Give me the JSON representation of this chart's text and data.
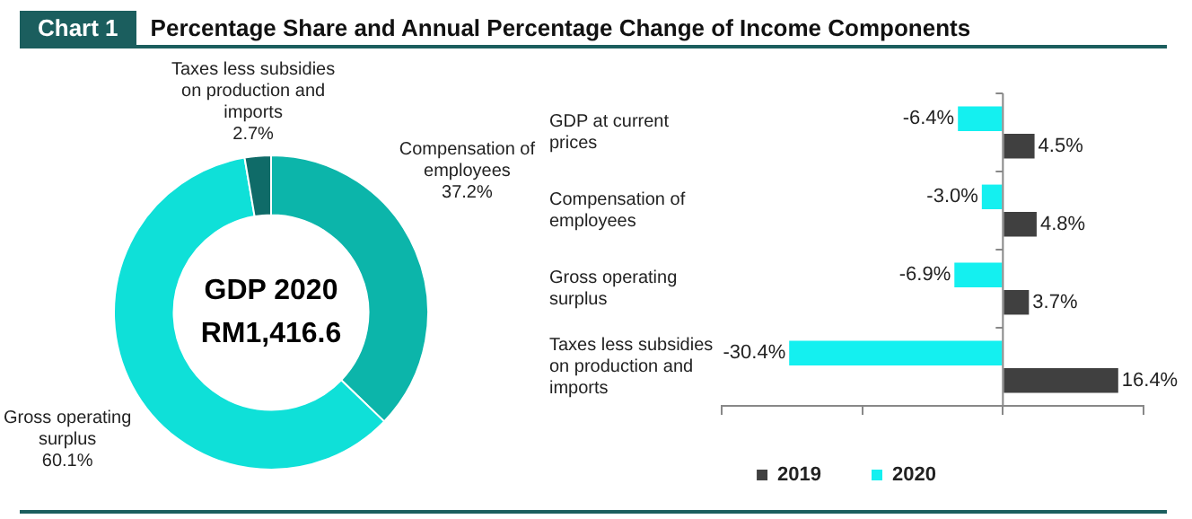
{
  "chart_data": [
    {
      "type": "donut",
      "title": "Percentage Share and Annual Percentage Change of Income Components",
      "subtitle": "Chart 1",
      "categories": [
        "Compensation of employees",
        "Gross operating surplus",
        "Taxes less subsidies on production and imports"
      ],
      "values": [
        37.2,
        60.1,
        2.7
      ],
      "value_labels": [
        "37.2%",
        "60.1%",
        "2.7%"
      ],
      "colors": [
        "#0cb5aa",
        "#0fe0d8",
        "#0f6b68"
      ],
      "annotations": [
        "GDP 2020",
        "RM1,416.6"
      ],
      "legend": false
    },
    {
      "type": "bar",
      "orientation": "horizontal",
      "categories": [
        "GDP at current prices",
        "Compensation of employees",
        "Gross operating surplus",
        "Taxes less subsidies on production and imports"
      ],
      "series": [
        {
          "name": "2019",
          "color": "#404040",
          "values": [
            4.5,
            4.8,
            3.7,
            16.4
          ],
          "value_labels": [
            "4.5%",
            "4.8%",
            "3.7%",
            "16.4%"
          ]
        },
        {
          "name": "2020",
          "color": "#14f0f0",
          "values": [
            -6.4,
            -3.0,
            -6.9,
            -30.4
          ],
          "value_labels": [
            "-6.4%",
            "-3.0%",
            "-6.9%",
            "-30.4%"
          ]
        }
      ],
      "tick_labels": "y",
      "legend": "bottom"
    }
  ]
}
